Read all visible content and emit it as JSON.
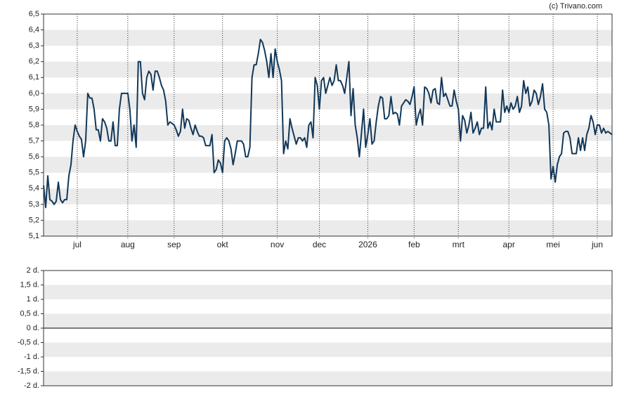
{
  "source": "(c) Trivano.com",
  "chart_data": [
    {
      "type": "line",
      "series": [
        {
          "color": "#12385a",
          "values": [
            5.42,
            5.28,
            5.48,
            5.33,
            5.32,
            5.3,
            5.32,
            5.44,
            5.33,
            5.31,
            5.33,
            5.33,
            5.48,
            5.55,
            5.7,
            5.8,
            5.76,
            5.73,
            5.71,
            5.6,
            5.7,
            6.0,
            5.97,
            5.97,
            5.9,
            5.77,
            5.77,
            5.7,
            5.84,
            5.82,
            5.78,
            5.7,
            5.7,
            5.82,
            5.67,
            5.67,
            5.9,
            6.0,
            6.0,
            6.0,
            6.0,
            5.9,
            5.7,
            5.8,
            5.66,
            6.2,
            6.2,
            6.0,
            5.96,
            6.1,
            6.14,
            6.12,
            6.02,
            6.14,
            6.14,
            6.1,
            6.05,
            6.02,
            5.95,
            5.8,
            5.82,
            5.81,
            5.8,
            5.77,
            5.73,
            5.76,
            5.9,
            5.78,
            5.84,
            5.83,
            5.78,
            5.74,
            5.8,
            5.76,
            5.73,
            5.73,
            5.72,
            5.67,
            5.67,
            5.67,
            5.74,
            5.5,
            5.52,
            5.58,
            5.56,
            5.5,
            5.7,
            5.72,
            5.7,
            5.65,
            5.55,
            5.62,
            5.7,
            5.7,
            5.7,
            5.68,
            5.6,
            5.6,
            5.66,
            6.1,
            6.18,
            6.18,
            6.25,
            6.34,
            6.32,
            6.27,
            6.2,
            6.1,
            6.25,
            6.1,
            6.28,
            6.2,
            6.15,
            6.08,
            5.62,
            5.7,
            5.65,
            5.84,
            5.78,
            5.73,
            5.68,
            5.72,
            5.72,
            5.7,
            5.72,
            5.66,
            5.8,
            5.82,
            5.72,
            6.1,
            6.05,
            5.9,
            6.08,
            6.1,
            6.0,
            6.05,
            6.1,
            6.05,
            6.08,
            6.18,
            6.08,
            6.08,
            6.05,
            6.0,
            6.1,
            6.2,
            5.86,
            6.03,
            5.8,
            5.72,
            5.6,
            5.75,
            5.9,
            5.66,
            5.74,
            5.84,
            5.68,
            5.7,
            5.82,
            5.92,
            5.98,
            5.97,
            5.84,
            5.84,
            5.86,
            5.98,
            5.87,
            5.88,
            5.87,
            5.8,
            5.92,
            5.94,
            5.96,
            5.95,
            5.93,
            5.98,
            6.04,
            5.8,
            5.86,
            5.9,
            5.8,
            6.04,
            6.03,
            6.0,
            5.94,
            6.02,
            6.03,
            5.94,
            5.93,
            6.1,
            5.98,
            6.0,
            5.96,
            5.92,
            5.92,
            6.02,
            5.95,
            5.9,
            5.7,
            5.86,
            5.83,
            5.75,
            5.8,
            5.88,
            5.75,
            5.78,
            5.82,
            5.74,
            5.78,
            5.78,
            6.04,
            5.78,
            5.82,
            5.77,
            5.9,
            5.82,
            5.82,
            5.82,
            6.02,
            5.88,
            5.92,
            5.88,
            5.94,
            5.9,
            5.92,
            5.98,
            5.88,
            5.92,
            6.08,
            6.0,
            6.04,
            5.92,
            5.95,
            6.02,
            6.0,
            5.93,
            5.98,
            6.06,
            5.9,
            5.88,
            5.8,
            5.46,
            5.54,
            5.44,
            5.55,
            5.6,
            5.62,
            5.75,
            5.76,
            5.76,
            5.72,
            5.62,
            5.62,
            5.62,
            5.72,
            5.64,
            5.72,
            5.64,
            5.74,
            5.78,
            5.86,
            5.82,
            5.74,
            5.8,
            5.8,
            5.75,
            5.78,
            5.75,
            5.76,
            5.75,
            5.74
          ]
        }
      ],
      "xlim": [
        0,
        270
      ],
      "xticks": [
        {
          "value": 16,
          "label": "jul"
        },
        {
          "value": 40,
          "label": "aug"
        },
        {
          "value": 62,
          "label": "sep"
        },
        {
          "value": 85,
          "label": "okt"
        },
        {
          "value": 111,
          "label": "nov"
        },
        {
          "value": 131,
          "label": "dec"
        },
        {
          "value": 154,
          "label": "2026"
        },
        {
          "value": 176,
          "label": "feb"
        },
        {
          "value": 197,
          "label": "mrt"
        },
        {
          "value": 221,
          "label": "apr"
        },
        {
          "value": 242,
          "label": "mei"
        },
        {
          "value": 263,
          "label": "jun"
        }
      ],
      "ylim": [
        5.1,
        6.5
      ],
      "yticks": [
        {
          "value": 5.1,
          "label": "5,1"
        },
        {
          "value": 5.2,
          "label": "5,2"
        },
        {
          "value": 5.3,
          "label": "5,3"
        },
        {
          "value": 5.4,
          "label": "5,4"
        },
        {
          "value": 5.5,
          "label": "5,5"
        },
        {
          "value": 5.6,
          "label": "5,6"
        },
        {
          "value": 5.7,
          "label": "5,7"
        },
        {
          "value": 5.8,
          "label": "5,8"
        },
        {
          "value": 5.9,
          "label": "5,9"
        },
        {
          "value": 6.0,
          "label": "6,0"
        },
        {
          "value": 6.1,
          "label": "6,1"
        },
        {
          "value": 6.2,
          "label": "6,2"
        },
        {
          "value": 6.3,
          "label": "6,3"
        },
        {
          "value": 6.4,
          "label": "6,4"
        },
        {
          "value": 6.5,
          "label": "6,5"
        }
      ]
    },
    {
      "type": "line",
      "ylim": [
        -2,
        2
      ],
      "yticks": [
        {
          "value": -2,
          "label": "-2 d."
        },
        {
          "value": -1.5,
          "label": "-1,5 d."
        },
        {
          "value": -1,
          "label": "-1 d."
        },
        {
          "value": -0.5,
          "label": "-0,5 d."
        },
        {
          "value": 0,
          "label": "0 d."
        },
        {
          "value": 0.5,
          "label": "0,5 d."
        },
        {
          "value": 1,
          "label": "1 d."
        },
        {
          "value": 1.5,
          "label": "1,5 d."
        },
        {
          "value": 2,
          "label": "2 d."
        }
      ]
    }
  ]
}
